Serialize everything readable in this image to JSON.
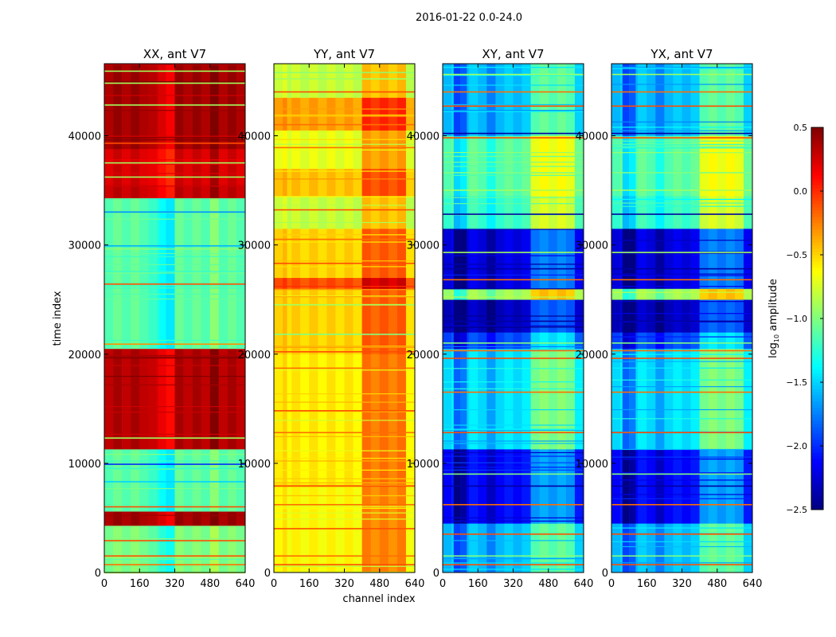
{
  "chart_data": {
    "type": "heatmap",
    "suptitle": "2016-01-22 0.0-24.0",
    "xlabel": "channel index",
    "ylabel": "time index",
    "xlim": [
      0,
      640
    ],
    "ylim": [
      0,
      46600
    ],
    "xticks": [
      "0",
      "160",
      "320",
      "480",
      "640"
    ],
    "yticks": [
      "0",
      "10000",
      "20000",
      "30000",
      "40000"
    ],
    "colorbar": {
      "label_main": "log",
      "label_sub": "10",
      "label_rest": " amplitude",
      "range": [
        -2.5,
        0.5
      ],
      "ticks": [
        "0.5",
        "0.0",
        "−0.5",
        "−1.0",
        "−1.5",
        "−2.0",
        "−2.5"
      ],
      "colormap": "jet"
    },
    "panels": [
      {
        "title": "XX, ant V7",
        "bands": [
          [
            0,
            4300,
            -1.0
          ],
          [
            4300,
            5600,
            0.4
          ],
          [
            5600,
            11300,
            -1.1
          ],
          [
            11300,
            20500,
            0.35
          ],
          [
            20500,
            34300,
            -1.1
          ],
          [
            34300,
            35500,
            0.3
          ],
          [
            35500,
            38800,
            0.25
          ],
          [
            38800,
            46600,
            0.4
          ]
        ],
        "columns": [
          [
            200,
            250,
            -0.15
          ],
          [
            250,
            320,
            -0.3
          ],
          [
            480,
            520,
            0.1
          ]
        ],
        "hot_columns": [
          [
            250,
            320,
            -0.3
          ]
        ],
        "stripes": [
          [
            700,
            -0.2
          ],
          [
            1500,
            -0.1
          ],
          [
            2900,
            -0.1
          ],
          [
            6000,
            -0.1
          ],
          [
            8300,
            -1.5
          ],
          [
            9900,
            -2.0
          ],
          [
            12300,
            -0.9
          ],
          [
            20900,
            -0.3
          ],
          [
            26400,
            -0.1
          ],
          [
            29900,
            -1.6
          ],
          [
            33000,
            -1.7
          ],
          [
            36200,
            -0.9
          ],
          [
            37500,
            -0.9
          ],
          [
            39300,
            -0.1
          ],
          [
            42800,
            -0.9
          ],
          [
            44800,
            -0.9
          ],
          [
            45900,
            -0.9
          ]
        ]
      },
      {
        "title": "YY, ant V7",
        "bands": [
          [
            0,
            8000,
            -0.62
          ],
          [
            8000,
            20000,
            -0.58
          ],
          [
            20000,
            26000,
            -0.5
          ],
          [
            26000,
            27000,
            -0.1
          ],
          [
            27000,
            31500,
            -0.5
          ],
          [
            31500,
            34500,
            -0.8
          ],
          [
            34500,
            37000,
            -0.45
          ],
          [
            37000,
            40500,
            -0.7
          ],
          [
            40500,
            43500,
            -0.35
          ],
          [
            43500,
            46600,
            -0.8
          ]
        ],
        "columns": [
          [
            400,
            600,
            0.35
          ],
          [
            0,
            60,
            0.05
          ]
        ],
        "hot_columns": [],
        "stripes": [
          [
            700,
            -0.1
          ],
          [
            1500,
            -0.2
          ],
          [
            4000,
            -0.1
          ],
          [
            6200,
            -0.2
          ],
          [
            7900,
            -0.1
          ],
          [
            12800,
            -0.2
          ],
          [
            14800,
            -0.1
          ],
          [
            18700,
            -0.2
          ],
          [
            20200,
            -0.1
          ],
          [
            21800,
            -1.0
          ],
          [
            24500,
            -0.9
          ],
          [
            28300,
            -0.1
          ],
          [
            30500,
            -0.2
          ],
          [
            33200,
            -0.1
          ],
          [
            38900,
            -0.2
          ],
          [
            41000,
            -0.2
          ],
          [
            44000,
            -0.1
          ],
          [
            45200,
            -0.9
          ]
        ]
      },
      {
        "title": "XY, ant V7",
        "bands": [
          [
            0,
            4500,
            -1.55
          ],
          [
            4500,
            11300,
            -2.1
          ],
          [
            11300,
            20500,
            -1.45
          ],
          [
            20500,
            22000,
            -1.9
          ],
          [
            22000,
            25000,
            -2.3
          ],
          [
            25000,
            26000,
            -0.9
          ],
          [
            26000,
            31500,
            -2.2
          ],
          [
            31500,
            34500,
            -1.2
          ],
          [
            34500,
            40000,
            -1.1
          ],
          [
            40000,
            46600,
            -1.55
          ]
        ],
        "columns": [
          [
            50,
            110,
            -0.35
          ],
          [
            200,
            240,
            -0.25
          ],
          [
            400,
            600,
            0.45
          ]
        ],
        "hot_columns": [],
        "stripes": [
          [
            700,
            -0.1
          ],
          [
            1500,
            -1.0
          ],
          [
            3500,
            -0.1
          ],
          [
            6200,
            -0.2
          ],
          [
            7900,
            -2.4
          ],
          [
            9000,
            -1.0
          ],
          [
            12800,
            -0.1
          ],
          [
            16500,
            -0.2
          ],
          [
            19600,
            -0.1
          ],
          [
            20300,
            -0.2
          ],
          [
            21000,
            -1.0
          ],
          [
            23000,
            -2.4
          ],
          [
            26800,
            -0.2
          ],
          [
            27800,
            -2.4
          ],
          [
            29300,
            -0.9
          ],
          [
            32800,
            -2.4
          ],
          [
            35000,
            -0.9
          ],
          [
            36600,
            -1.0
          ],
          [
            39800,
            -0.1
          ],
          [
            40200,
            -2.4
          ],
          [
            42700,
            -0.1
          ],
          [
            44000,
            -0.2
          ],
          [
            45600,
            -0.9
          ]
        ]
      },
      {
        "title": "YX, ant V7",
        "bands": [
          [
            0,
            4500,
            -1.55
          ],
          [
            4500,
            11300,
            -2.1
          ],
          [
            11300,
            20500,
            -1.45
          ],
          [
            20500,
            22000,
            -1.9
          ],
          [
            22000,
            25000,
            -2.3
          ],
          [
            25000,
            26000,
            -0.9
          ],
          [
            26000,
            31500,
            -2.2
          ],
          [
            31500,
            34500,
            -1.2
          ],
          [
            34500,
            40000,
            -1.1
          ],
          [
            40000,
            46600,
            -1.55
          ]
        ],
        "columns": [
          [
            50,
            110,
            -0.35
          ],
          [
            200,
            240,
            -0.25
          ],
          [
            400,
            600,
            0.45
          ]
        ],
        "hot_columns": [],
        "stripes": [
          [
            700,
            -0.1
          ],
          [
            1500,
            -1.0
          ],
          [
            3500,
            -0.1
          ],
          [
            6200,
            -0.2
          ],
          [
            7900,
            -2.4
          ],
          [
            9000,
            -1.0
          ],
          [
            12800,
            -0.1
          ],
          [
            16500,
            -0.2
          ],
          [
            19600,
            -0.1
          ],
          [
            20300,
            -0.2
          ],
          [
            21000,
            -1.0
          ],
          [
            23000,
            -2.4
          ],
          [
            26800,
            -0.2
          ],
          [
            27800,
            -2.4
          ],
          [
            29300,
            -0.9
          ],
          [
            32800,
            -2.4
          ],
          [
            35000,
            -0.9
          ],
          [
            36600,
            -1.0
          ],
          [
            39800,
            -0.1
          ],
          [
            40200,
            -2.4
          ],
          [
            42700,
            -0.1
          ],
          [
            44000,
            -0.2
          ],
          [
            45600,
            -0.9
          ]
        ]
      }
    ]
  }
}
